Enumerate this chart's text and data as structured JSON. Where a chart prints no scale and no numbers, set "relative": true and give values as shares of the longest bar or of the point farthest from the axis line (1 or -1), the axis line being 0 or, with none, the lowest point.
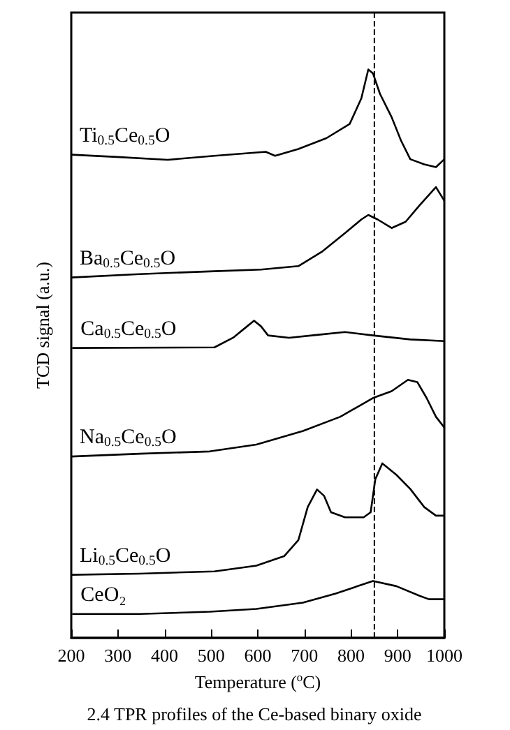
{
  "chart_data": {
    "type": "line",
    "relative": true,
    "xlabel": "Temperature ($^{o}$C)",
    "ylabel": "TCD signal (a.u.)",
    "annotations": [
      "2.4 TPR profiles of the Ce-based binary oxide"
    ],
    "xlim": [
      200,
      1000
    ],
    "xticks": [
      200,
      300,
      400,
      500,
      600,
      700,
      800,
      900,
      1000
    ],
    "tick_labels": "x",
    "ref_lines": [
      {
        "axis": "x",
        "value": 850,
        "color": "#000000",
        "line_style": "dashed"
      }
    ],
    "series": [
      {
        "name": "Ti$_{0.5}$Ce$_{0.5}$O",
        "color": "#000000",
        "x": [
          200,
          297,
          407,
          507,
          617,
          637,
          687,
          747,
          797,
          822,
          837,
          847,
          862,
          887,
          907,
          927,
          957,
          982,
          1000
        ],
        "values": [
          0.85,
          0.846,
          0.841,
          0.848,
          0.855,
          0.848,
          0.86,
          0.879,
          0.904,
          0.949,
          1,
          0.993,
          0.957,
          0.916,
          0.875,
          0.842,
          0.833,
          0.828,
          0.842
        ]
      },
      {
        "name": "Ba$_{0.5}$Ce$_{0.5}$O",
        "color": "#000000",
        "x": [
          200,
          347,
          507,
          607,
          687,
          737,
          787,
          822,
          837,
          857,
          887,
          917,
          947,
          982,
          1000
        ],
        "values": [
          0.634,
          0.64,
          0.645,
          0.648,
          0.654,
          0.679,
          0.712,
          0.736,
          0.744,
          0.736,
          0.721,
          0.732,
          0.761,
          0.793,
          0.769
        ]
      },
      {
        "name": "Ca$_{0.5}$Ce$_{0.5}$O",
        "color": "#000000",
        "x": [
          202,
          507,
          547,
          577,
          592,
          607,
          622,
          667,
          727,
          787,
          847,
          927,
          1000
        ],
        "values": [
          0.51,
          0.511,
          0.528,
          0.548,
          0.558,
          0.548,
          0.532,
          0.528,
          0.533,
          0.538,
          0.532,
          0.525,
          0.522
        ]
      },
      {
        "name": "Na$_{0.5}$Ce$_{0.5}$O",
        "color": "#000000",
        "x": [
          200,
          347,
          497,
          597,
          697,
          777,
          847,
          887,
          922,
          942,
          962,
          982,
          1000
        ],
        "values": [
          0.319,
          0.324,
          0.328,
          0.34,
          0.364,
          0.389,
          0.422,
          0.434,
          0.454,
          0.45,
          0.422,
          0.389,
          0.37
        ]
      },
      {
        "name": "Li$_{0.5}$Ce$_{0.5}$O",
        "color": "#000000",
        "x": [
          200,
          347,
          507,
          597,
          657,
          687,
          707,
          727,
          742,
          757,
          787,
          827,
          842,
          852,
          867,
          897,
          927,
          957,
          982,
          1000
        ],
        "values": [
          0.111,
          0.113,
          0.117,
          0.127,
          0.144,
          0.172,
          0.23,
          0.261,
          0.25,
          0.221,
          0.212,
          0.212,
          0.221,
          0.279,
          0.307,
          0.287,
          0.262,
          0.23,
          0.215,
          0.215
        ]
      },
      {
        "name": "CeO₂",
        "color": "#000000",
        "x": [
          202,
          347,
          497,
          597,
          697,
          767,
          847,
          897,
          947,
          967,
          1000
        ],
        "values": [
          0.042,
          0.042,
          0.046,
          0.051,
          0.062,
          0.078,
          0.1,
          0.091,
          0.074,
          0.068,
          0.068
        ]
      }
    ]
  }
}
